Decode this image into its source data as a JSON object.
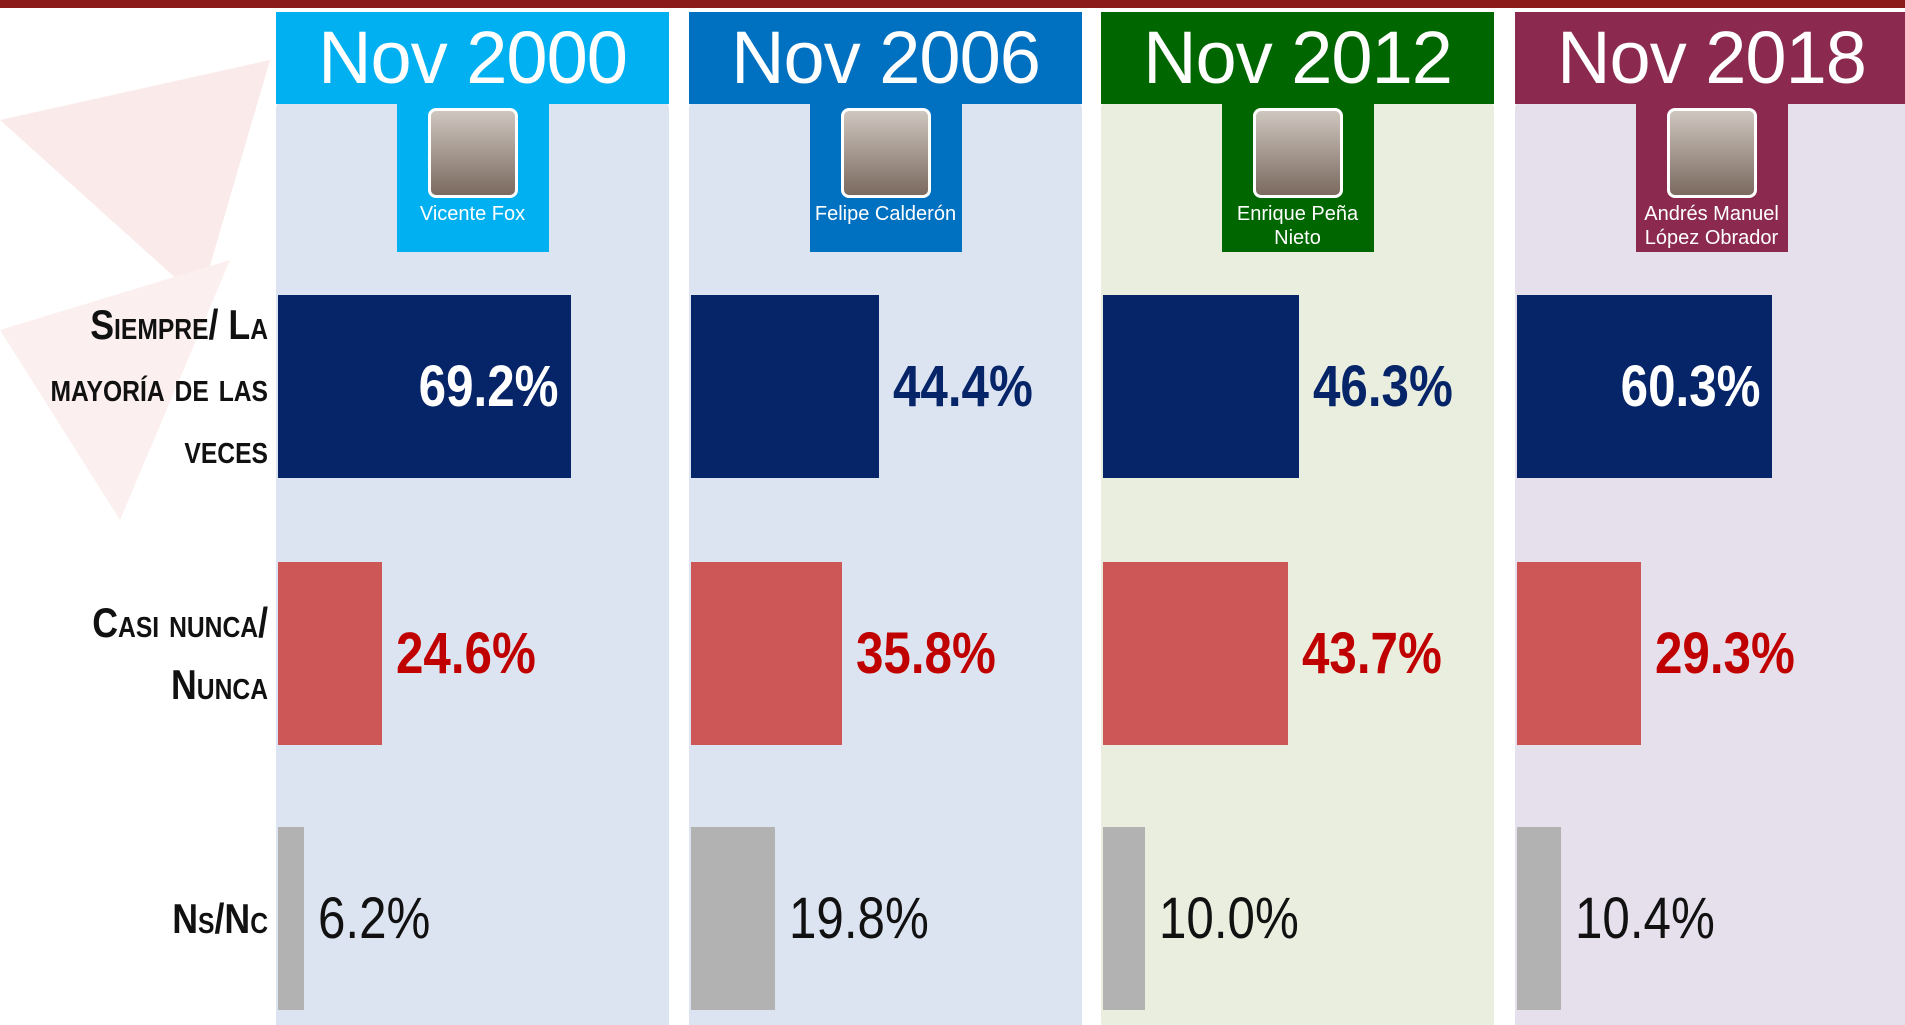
{
  "chart_data": {
    "type": "hbar",
    "categories": [
      "Siempre/ La mayoría de las veces",
      "Casi nunca/ Nunca",
      "Ns/Nc"
    ],
    "category_colors": [
      "#062468",
      "#cd5756",
      "#b2b2b2"
    ],
    "label_colors": [
      "#062468",
      "#c00000",
      "#111111"
    ],
    "series": [
      {
        "name": "Nov 2000",
        "subtitle": "Vicente Fox",
        "color": "#00b0f0",
        "background": "#dde4f1",
        "values": [
          69.2,
          24.6,
          6.2
        ],
        "value_labels": [
          "69.2%",
          "24.6%",
          "6.2%"
        ]
      },
      {
        "name": "Nov 2006",
        "subtitle": "Felipe Calderón",
        "color": "#0070c0",
        "background": "#dde4f1",
        "values": [
          44.4,
          35.8,
          19.8
        ],
        "value_labels": [
          "44.4%",
          "35.8%",
          "19.8%"
        ]
      },
      {
        "name": "Nov 2012",
        "subtitle": "Enrique Peña Nieto",
        "color": "#006600",
        "background": "#eaeedf",
        "values": [
          46.3,
          43.7,
          10.0
        ],
        "value_labels": [
          "46.3%",
          "43.7%",
          "10.0%"
        ]
      },
      {
        "name": "Nov 2018",
        "subtitle": "Andrés Manuel López Obrador",
        "color": "#8b2a4e",
        "background": "#e6e0ec",
        "values": [
          60.3,
          29.3,
          10.4
        ],
        "value_labels": [
          "60.3%",
          "29.3%",
          "10.4%"
        ]
      }
    ]
  }
}
